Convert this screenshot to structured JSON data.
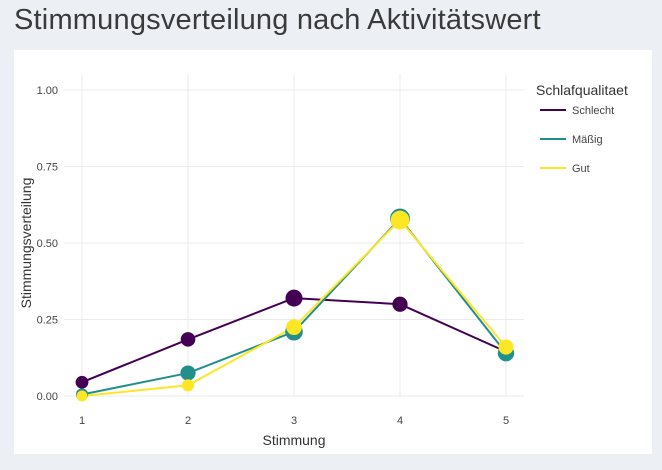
{
  "page": {
    "title": "Stimmungsverteilung nach Aktivitätswert"
  },
  "chart_data": {
    "type": "line",
    "x": [
      1,
      2,
      3,
      4,
      5
    ],
    "xlabel": "Stimmung",
    "ylabel": "Stimmungsverteilung",
    "ylim": [
      0,
      1.0
    ],
    "xlim": [
      1,
      5
    ],
    "y_ticks": [
      "0.00",
      "0.25",
      "0.50",
      "0.75",
      "1.00"
    ],
    "x_ticks": [
      "1",
      "2",
      "3",
      "4",
      "5"
    ],
    "grid": true,
    "legend": {
      "title": "Schlafqualitaet",
      "placement": "right"
    },
    "series": [
      {
        "name": "Schlecht",
        "color": "#440154",
        "values": [
          0.045,
          0.185,
          0.32,
          0.3,
          0.145
        ],
        "marker_weights": [
          0.4,
          0.55,
          0.75,
          0.6,
          0.45
        ]
      },
      {
        "name": "Mäßig",
        "color": "#21908c",
        "values": [
          0.005,
          0.075,
          0.21,
          0.58,
          0.14
        ],
        "marker_weights": [
          0.35,
          0.6,
          0.8,
          1.0,
          0.7
        ]
      },
      {
        "name": "Gut",
        "color": "#fde725",
        "values": [
          0.0,
          0.035,
          0.225,
          0.575,
          0.16
        ],
        "marker_weights": [
          0.25,
          0.35,
          0.65,
          0.9,
          0.6
        ]
      }
    ]
  }
}
